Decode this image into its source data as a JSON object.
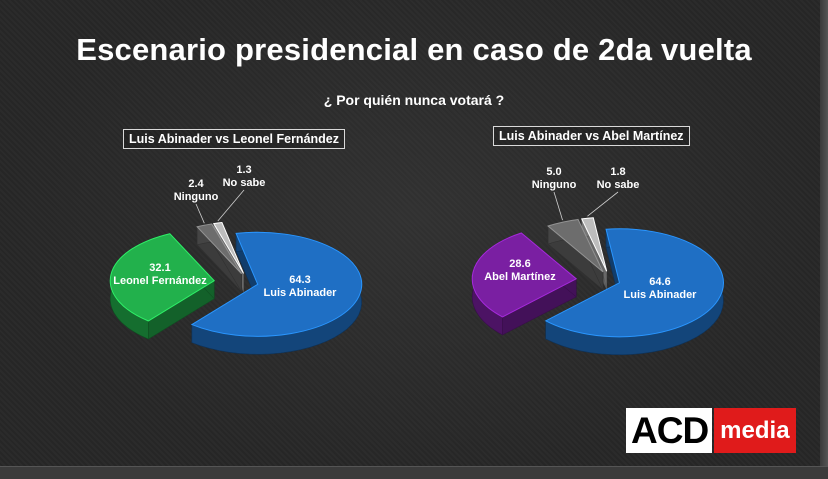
{
  "title": "Escenario presidencial en caso de 2da vuelta",
  "subtitle": "¿ Por quién nunca votará ?",
  "logo": {
    "part1": "ACD",
    "part2": "media"
  },
  "colors": {
    "luis_abinader": "#1f6fc4",
    "leonel_fernandez": "#22b14c",
    "abel_martinez": "#7a1fa2",
    "ninguno": "#6d6d6d",
    "no_sabe": "#bdbdbd"
  },
  "chart_data": [
    {
      "type": "pie",
      "title": "Luis Abinader vs Leonel Fernández",
      "slices": [
        {
          "label": "Luis Abinader",
          "value": 64.3
        },
        {
          "label": "Leonel Fernández",
          "value": 32.1
        },
        {
          "label": "Ninguno",
          "value": 2.4
        },
        {
          "label": "No sabe",
          "value": 1.3
        }
      ]
    },
    {
      "type": "pie",
      "title": "Luis Abinader vs Abel Martínez",
      "slices": [
        {
          "label": "Luis Abinader",
          "value": 64.6
        },
        {
          "label": "Abel Martínez",
          "value": 28.6
        },
        {
          "label": "Ninguno",
          "value": 5.0
        },
        {
          "label": "No sabe",
          "value": 1.8
        }
      ]
    }
  ]
}
